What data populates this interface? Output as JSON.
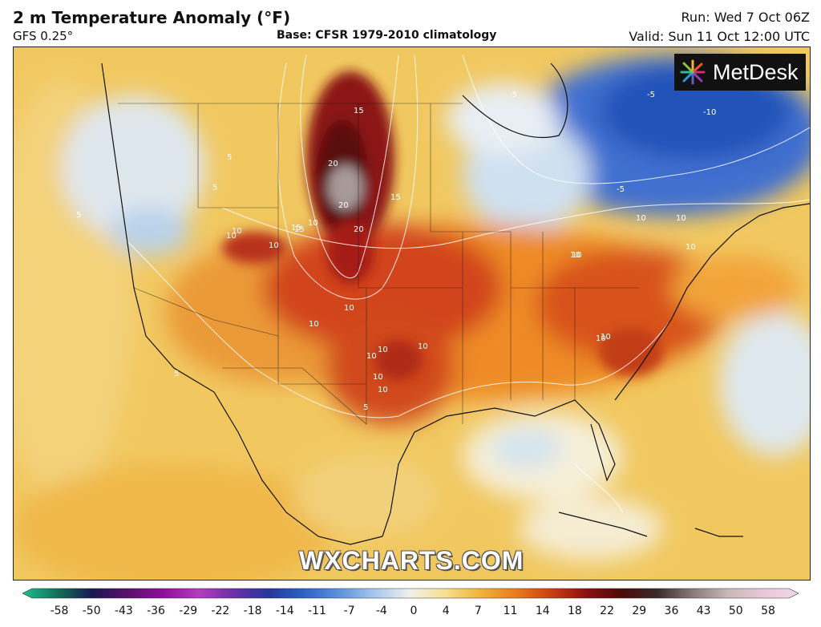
{
  "header": {
    "title": "2 m Temperature Anomaly (°F)",
    "model": "GFS 0.25°",
    "base": "Base: CFSR 1979-2010 climatology",
    "run": "Run: Wed 7 Oct 06Z",
    "valid": "Valid: Sun 11 Oct 12:00 UTC"
  },
  "logo": {
    "text": "MetDesk",
    "icon": "metdesk-burst-icon"
  },
  "watermark": "WXCHARTS.COM",
  "contour_labels": [
    "15",
    "20",
    "15",
    "15",
    "20",
    "20",
    "10",
    "10",
    "10",
    "15",
    "10",
    "10",
    "10",
    "10",
    "10",
    "10",
    "10",
    "10",
    "10",
    "10",
    "10",
    "5",
    "5",
    "5",
    "5",
    "5",
    "10",
    "-5",
    "-10",
    "-5",
    "-5",
    "10",
    "10",
    "10"
  ],
  "colorbar": {
    "ticks": [
      "-58",
      "-50",
      "-43",
      "-36",
      "-29",
      "-22",
      "-18",
      "-14",
      "-11",
      "-7",
      "-4",
      "0",
      "4",
      "7",
      "11",
      "14",
      "18",
      "22",
      "29",
      "36",
      "43",
      "50",
      "58"
    ],
    "colors": [
      "#1fbf8f",
      "#0f6f58",
      "#1c1650",
      "#5a0f6a",
      "#8e0f9e",
      "#b53bbf",
      "#6a2fa8",
      "#23389a",
      "#2f62c6",
      "#5d93dd",
      "#a9c8ec",
      "#f2f0ea",
      "#f6df8e",
      "#f0b238",
      "#ea7a1c",
      "#cc3d12",
      "#8a0f10",
      "#4d0a0a",
      "#3a2a2a",
      "#8a7a7a",
      "#c9b8b8",
      "#e8c8d8",
      "#f3d6e6"
    ]
  }
}
